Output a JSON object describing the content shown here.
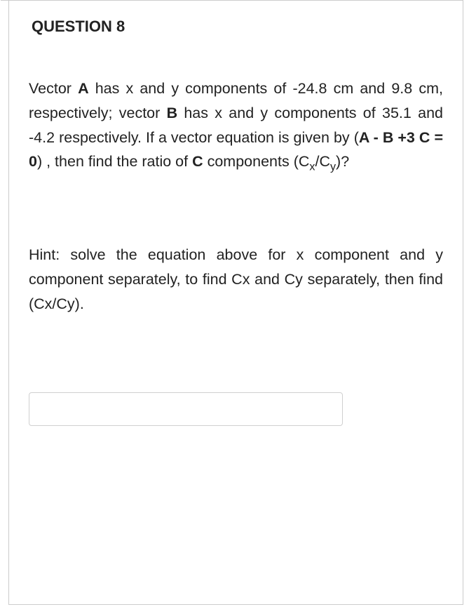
{
  "question": {
    "title": "QUESTION 8",
    "vectorA_label": "A",
    "vectorB_label": "B",
    "vectorC_label": "C",
    "ax_value": "-24.8 cm",
    "ay_value": "9.8 cm",
    "bx_value": "35.1",
    "by_value": "-4.2",
    "equation_prefix": "(",
    "equation_part1": "A - B +3 C = 0",
    "equation_suffix": ")",
    "ratio_label_cx": "C",
    "ratio_label_cy": "C",
    "sub_x": "x",
    "sub_y": "y",
    "body_text_1": "Vector ",
    "body_text_2": " has x and y components of ",
    "body_text_3": " and ",
    "body_text_4": ", respectively; vector ",
    "body_text_5": " has x and y components of ",
    "body_text_6": " and ",
    "body_text_7": " respectively. If a vector equation is given by ",
    "body_text_8": " , then find the ratio of ",
    "body_text_9": " components (",
    "body_text_10": "/",
    "body_text_11": ")?",
    "hint_text": "Hint: solve the equation above for x component and y component separately, to find Cx and Cy separately, then find (Cx/Cy).",
    "answer_value": ""
  },
  "styling": {
    "border_color": "#cccccc",
    "text_color": "#222222",
    "background_color": "#ffffff",
    "title_fontsize": 22,
    "body_fontsize": 21.5,
    "line_height": 1.62,
    "input_border_color": "#d0d0d0",
    "input_border_radius": 4,
    "input_width": 448,
    "input_height": 48
  }
}
